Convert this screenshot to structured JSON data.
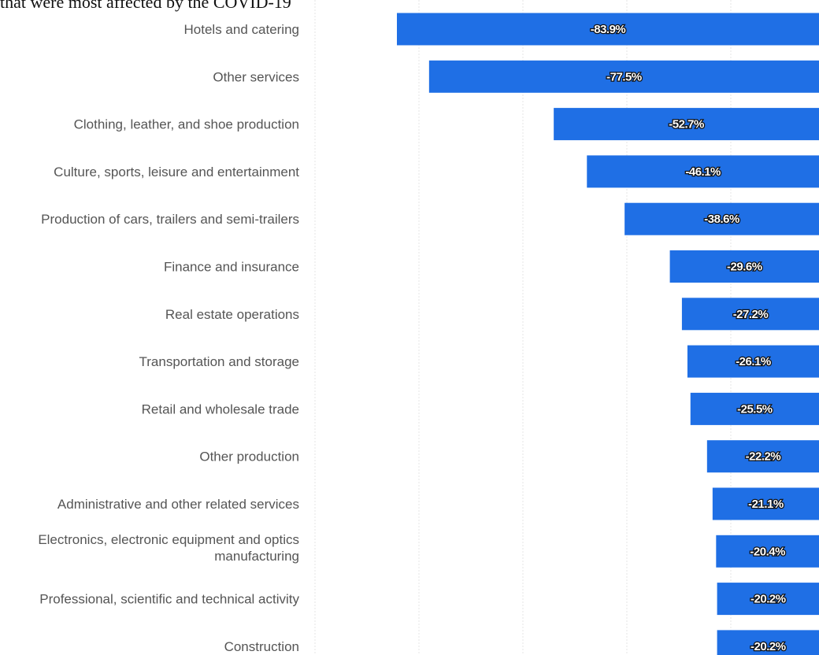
{
  "title": "that were most affected by the COVID-19",
  "chart_data": {
    "type": "bar",
    "orientation": "horizontal",
    "categories": [
      "Hotels and catering",
      "Other services",
      "Clothing, leather, and shoe production",
      "Culture, sports, leisure and entertainment",
      "Production of cars, trailers and semi-trailers",
      "Finance and insurance",
      "Real estate operations",
      "Transportation and storage",
      "Retail and wholesale trade",
      "Other production",
      "Administrative and other related services",
      "Electronics, electronic equipment and optics manufacturing",
      "Professional, scientific and technical activity",
      "Construction"
    ],
    "category_lines": [
      [
        "Hotels and catering"
      ],
      [
        "Other services"
      ],
      [
        "Clothing, leather, and shoe production"
      ],
      [
        "Culture, sports, leisure and entertainment"
      ],
      [
        "Production of cars, trailers and semi-trailers"
      ],
      [
        "Finance and insurance"
      ],
      [
        "Real estate operations"
      ],
      [
        "Transportation and storage"
      ],
      [
        "Retail and wholesale trade"
      ],
      [
        "Other production"
      ],
      [
        "Administrative and other related services"
      ],
      [
        "Electronics, electronic equipment and optics",
        "manufacturing"
      ],
      [
        "Professional, scientific and technical activity"
      ],
      [
        "Construction"
      ]
    ],
    "values": [
      -83.9,
      -77.5,
      -52.7,
      -46.1,
      -38.6,
      -29.6,
      -27.2,
      -26.1,
      -25.5,
      -22.2,
      -21.1,
      -20.4,
      -20.2,
      -20.2
    ],
    "value_labels": [
      "-83.9%",
      "-77.5%",
      "-52.7%",
      "-46.1%",
      "-38.6%",
      "-29.6%",
      "-27.2%",
      "-26.1%",
      "-25.5%",
      "-22.2%",
      "-21.1%",
      "-20.4%",
      "-20.2%",
      "-20.2%"
    ],
    "xlim": [
      -100,
      0
    ],
    "grid": true,
    "bar_color": "#1f6fe5",
    "grid_color": "#e6e6e6"
  }
}
